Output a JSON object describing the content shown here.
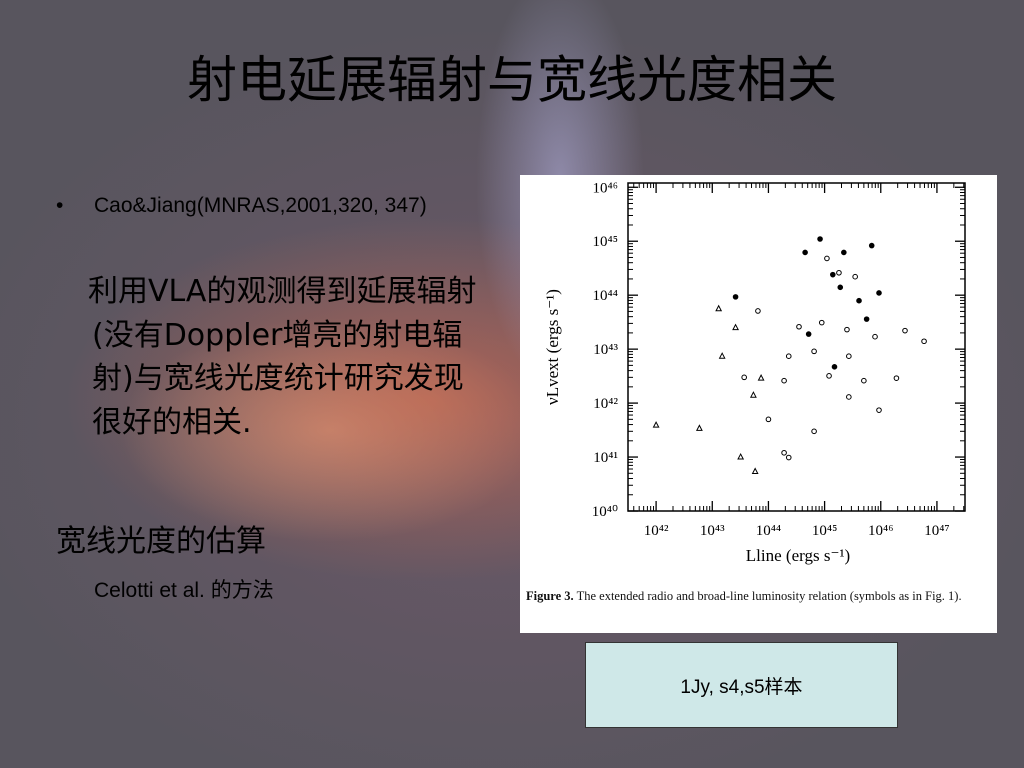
{
  "title": "射电延展辐射与宽线光度相关",
  "bullets": [
    {
      "marker": "•",
      "text": "Cao&Jiang(MNRAS,2001,320, 347)"
    }
  ],
  "paragraph": "利用VLA的观测得到延展辐射(没有Doppler增亮的射电辐射)与宽线光度统计研究发现很好的相关.",
  "subheading": "宽线光度的估算",
  "subtext": "Celotti et al. 的方法",
  "note": "1Jy, s4,s5样本",
  "figure_caption": {
    "label": "Figure 3.",
    "text": "The extended radio and broad-line luminosity relation (symbols as in Fig. 1)."
  },
  "chart_data": {
    "type": "scatter",
    "xlabel": "Lline (ergs s⁻¹)",
    "ylabel": "νLvext (ergs s⁻¹)",
    "xscale": "log",
    "yscale": "log",
    "xlim": [
      3.16e+41,
      3.16e+47
    ],
    "ylim": [
      1e+40,
      1.2e+46
    ],
    "xticks": [
      {
        "value": 1e+42,
        "label": "10⁴²"
      },
      {
        "value": 1e+43,
        "label": "10⁴³"
      },
      {
        "value": 1e+44,
        "label": "10⁴⁴"
      },
      {
        "value": 1e+45,
        "label": "10⁴⁵"
      },
      {
        "value": 1e+46,
        "label": "10⁴⁶"
      },
      {
        "value": 1e+47,
        "label": "10⁴⁷"
      }
    ],
    "yticks": [
      {
        "value": 1e+40,
        "label": "10⁴⁰"
      },
      {
        "value": 1e+41,
        "label": "10⁴¹"
      },
      {
        "value": 1e+42,
        "label": "10⁴²"
      },
      {
        "value": 1e+43,
        "label": "10⁴³"
      },
      {
        "value": 1e+44,
        "label": "10⁴⁴"
      },
      {
        "value": 1e+45,
        "label": "10⁴⁵"
      },
      {
        "value": 1e+46,
        "label": "10⁴⁶"
      }
    ],
    "series": [
      {
        "color": "#000000",
        "marker": "circle",
        "filled": true,
        "x": [
          8.3e+44,
          4.5e+44,
          2.2e+45,
          6.9e+45,
          1.4e+45,
          1.9e+45,
          9.3e+45,
          2.6e+43,
          5.2e+44,
          5.6e+45,
          1.5e+45,
          4.1e+45
        ],
        "values": [
          1.1e+45,
          6.2e+44,
          6.2e+44,
          8.3e+44,
          2.4e+44,
          1.4e+44,
          1.1e+44,
          9.3e+43,
          1.9e+43,
          3.6e+43,
          4.7e+42,
          7.9e+43
        ]
      },
      {
        "color": "#000000",
        "marker": "circle",
        "filled": false,
        "x": [
          1.1e+45,
          1.8e+45,
          3.5e+45,
          6.5e+43,
          3.5e+44,
          8.9e+44,
          2.5e+45,
          7.9e+45,
          2.7e+46,
          5.9e+46,
          2.3e+44,
          6.5e+44,
          2.7e+45,
          3.7e+43,
          1.9e+44,
          1.2e+45,
          5e+45,
          1.9e+46,
          1e+44,
          6.5e+44,
          1.9e+44,
          2.3e+44,
          9.3e+45,
          2.7e+45
        ],
        "values": [
          4.8e+44,
          2.6e+44,
          2.2e+44,
          5.1e+43,
          2.6e+43,
          3.1e+43,
          2.3e+43,
          1.7e+43,
          2.2e+43,
          1.4e+43,
          7.4e+42,
          9.1e+42,
          7.4e+42,
          3e+42,
          2.6e+42,
          3.2e+42,
          2.6e+42,
          2.9e+42,
          5e+41,
          3e+41,
          1.2e+41,
          9.8e+40,
          7.4e+41,
          1.3e+42
        ]
      },
      {
        "color": "#000000",
        "marker": "triangle",
        "filled": false,
        "x": [
          1.3e+43,
          2.6e+43,
          1.5e+43,
          7.4e+43,
          5.4e+43,
          1e+42,
          5.9e+42,
          3.2e+43,
          5.8e+43
        ],
        "values": [
          5.6e+43,
          2.5e+43,
          7.4e+42,
          2.9e+42,
          1.4e+42,
          3.9e+41,
          3.4e+41,
          1e+41,
          5.4e+40
        ]
      }
    ]
  }
}
